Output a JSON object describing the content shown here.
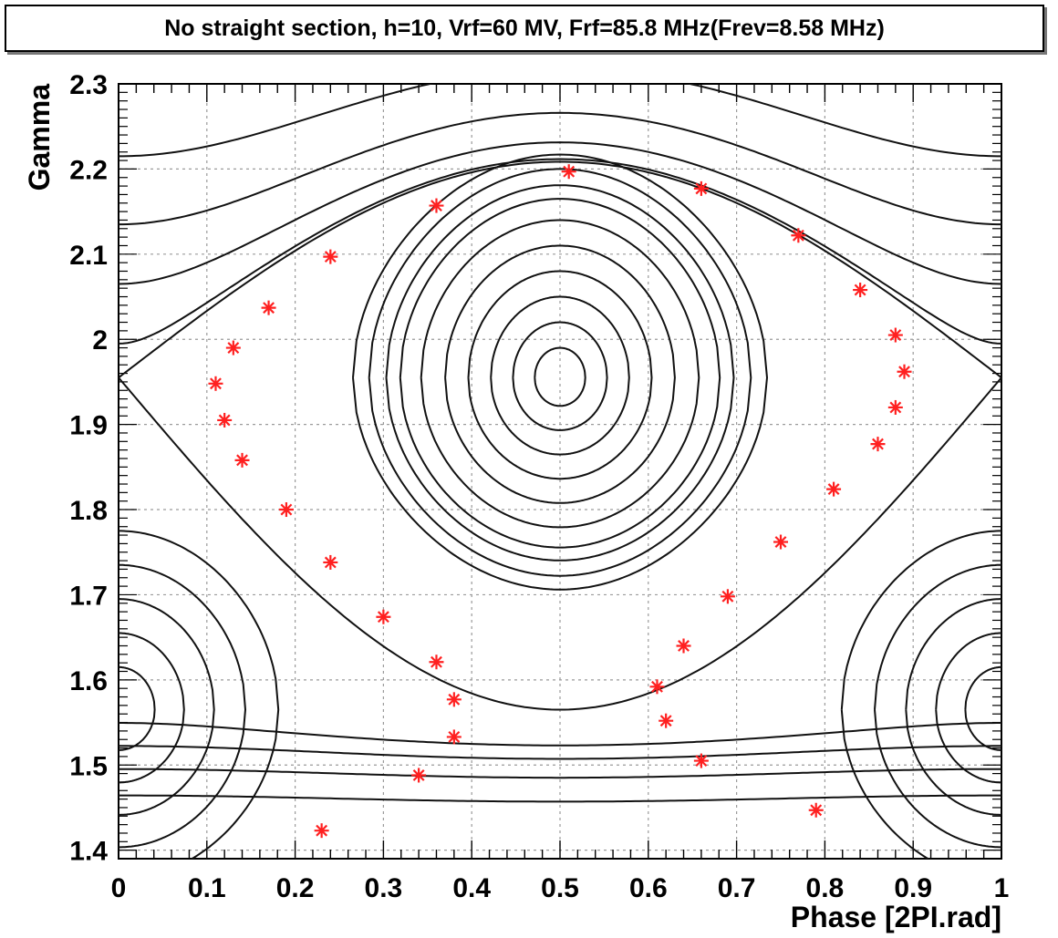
{
  "chart_data": {
    "type": "line",
    "title": "No straight section, h=10, Vrf=60 MV, Frf=85.8 MHz(Frev=8.58 MHz)",
    "xlabel": "Phase [2PI.rad]",
    "ylabel": "Gamma",
    "xlim": [
      0,
      1
    ],
    "ylim": [
      1.39,
      2.3
    ],
    "xticks": [
      0,
      0.1,
      0.2,
      0.3,
      0.4,
      0.5,
      0.6,
      0.7,
      0.8,
      0.9,
      1
    ],
    "xtick_labels": [
      "0",
      "0.1",
      "0.2",
      "0.3",
      "0.4",
      "0.5",
      "0.6",
      "0.7",
      "0.8",
      "0.9",
      "1"
    ],
    "yticks": [
      1.4,
      1.5,
      1.6,
      1.7,
      1.8,
      1.9,
      2.0,
      2.1,
      2.2,
      2.3
    ],
    "ytick_labels": [
      "1.4",
      "1.5",
      "1.6",
      "1.7",
      "1.8",
      "1.9",
      "2",
      "2.1",
      "2.2",
      "2.3"
    ],
    "grid": true,
    "phase_space": {
      "synchronous_phase": 0.5,
      "synchronous_gamma": 1.955,
      "separatrix_cross": [
        0.0,
        1.955
      ],
      "lower_cross": [
        0.5,
        1.565
      ],
      "closed_orbit_half_heights": [
        0.035,
        0.065,
        0.095,
        0.125,
        0.155,
        0.185,
        0.21,
        0.226
      ],
      "lower_bucket_half_heights": [
        0.05,
        0.09,
        0.13,
        0.17,
        0.21
      ],
      "outer_curve_offsets": [
        0.02,
        0.055,
        0.09,
        0.13
      ],
      "tracked_orbit_heights": [
        0.245,
        0.262
      ]
    },
    "series": [
      {
        "points": [
          [
            0.51,
            2.197
          ],
          [
            0.66,
            2.177
          ],
          [
            0.77,
            2.122
          ],
          [
            0.84,
            2.058
          ],
          [
            0.88,
            2.005
          ],
          [
            0.89,
            1.962
          ],
          [
            0.88,
            1.92
          ],
          [
            0.86,
            1.877
          ],
          [
            0.81,
            1.824
          ],
          [
            0.75,
            1.762
          ],
          [
            0.69,
            1.698
          ],
          [
            0.64,
            1.64
          ],
          [
            0.61,
            1.592
          ],
          [
            0.62,
            1.552
          ],
          [
            0.66,
            1.505
          ],
          [
            0.79,
            1.447
          ],
          [
            0.23,
            1.423
          ],
          [
            0.34,
            1.488
          ],
          [
            0.38,
            1.533
          ],
          [
            0.38,
            1.577
          ],
          [
            0.36,
            1.621
          ],
          [
            0.3,
            1.674
          ],
          [
            0.24,
            1.738
          ],
          [
            0.19,
            1.8
          ],
          [
            0.14,
            1.858
          ],
          [
            0.12,
            1.905
          ],
          [
            0.11,
            1.948
          ],
          [
            0.13,
            1.99
          ],
          [
            0.17,
            2.037
          ],
          [
            0.24,
            2.097
          ],
          [
            0.36,
            2.157
          ]
        ]
      }
    ],
    "colors": {
      "orbit": "#111111",
      "marker": "#ff2020",
      "grid": "#9a9a9a"
    }
  }
}
